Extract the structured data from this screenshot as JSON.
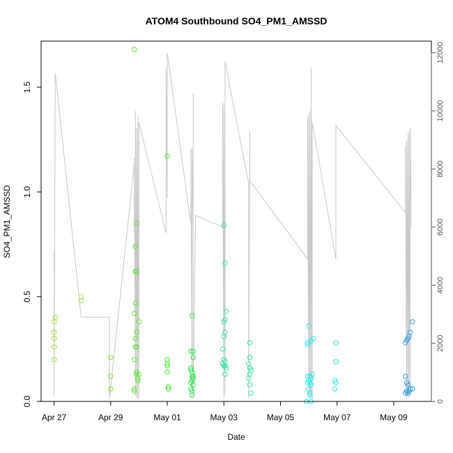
{
  "chart_data": {
    "type": "scatter",
    "title": "ATOM4 Southbound SO4_PM1_AMSSD",
    "xlabel": "Date",
    "ylabel": "SO4_PM1_AMSSD",
    "ylim": [
      0.0,
      1.72
    ],
    "y_ticks": [
      0.0,
      0.5,
      1.0,
      1.5
    ],
    "y_tick_labels": [
      "0.0",
      "0.5",
      "1.0",
      "1.5"
    ],
    "xlim": [
      "2018-04-26 13:00",
      "2018-05-10 08:00"
    ],
    "x_ticks": [
      "2018-04-27",
      "2018-04-29",
      "2018-05-01",
      "2018-05-03",
      "2018-05-05",
      "2018-05-07",
      "2018-05-09"
    ],
    "x_tick_labels": [
      "Apr 27",
      "Apr 29",
      "May 01",
      "May 03",
      "May 05",
      "May 07",
      "May 09"
    ],
    "y2lim": [
      0,
      12400
    ],
    "y2_ticks": [
      0,
      2000,
      4000,
      6000,
      8000,
      10000,
      12000
    ],
    "y2_tick_labels": [
      "0",
      "2000",
      "4000",
      "6000",
      "8000",
      "10000",
      "12000"
    ],
    "grid": false,
    "series": [
      {
        "marker": "open-circle",
        "points": [
          {
            "x": "2018-04-27 00:00",
            "y": 0.2,
            "color": "#9be62e"
          },
          {
            "x": "2018-04-27 00:00",
            "y": 0.26,
            "color": "#9be62e"
          },
          {
            "x": "2018-04-27 00:00",
            "y": 0.3,
            "color": "#9be62e"
          },
          {
            "x": "2018-04-27 00:00",
            "y": 0.33,
            "color": "#9be62e"
          },
          {
            "x": "2018-04-27 00:00",
            "y": 0.38,
            "color": "#9be62e"
          },
          {
            "x": "2018-04-27 01:00",
            "y": 0.4,
            "color": "#9be62e"
          },
          {
            "x": "2018-04-27 23:00",
            "y": 0.48,
            "color": "#a8e63a"
          },
          {
            "x": "2018-04-27 23:00",
            "y": 0.5,
            "color": "#a8e63a"
          },
          {
            "x": "2018-04-29 00:00",
            "y": 0.06,
            "color": "#7fe62e"
          },
          {
            "x": "2018-04-29 00:00",
            "y": 0.12,
            "color": "#7fe62e"
          },
          {
            "x": "2018-04-29 00:00",
            "y": 0.21,
            "color": "#7fe62e"
          },
          {
            "x": "2018-04-29 20:00",
            "y": 0.06,
            "color": "#5ee62e"
          },
          {
            "x": "2018-04-29 20:00",
            "y": 0.05,
            "color": "#5ee62e"
          },
          {
            "x": "2018-04-29 20:00",
            "y": 0.2,
            "color": "#5ee62e"
          },
          {
            "x": "2018-04-29 20:00",
            "y": 0.42,
            "color": "#5ee62e"
          },
          {
            "x": "2018-04-29 21:00",
            "y": 0.74,
            "color": "#5ee62e"
          },
          {
            "x": "2018-04-29 21:00",
            "y": 0.3,
            "color": "#5ee62e"
          },
          {
            "x": "2018-04-29 21:00",
            "y": 0.47,
            "color": "#5ee62e"
          },
          {
            "x": "2018-04-29 21:00",
            "y": 0.62,
            "color": "#5ee62e"
          },
          {
            "x": "2018-04-29 22:00",
            "y": 0.85,
            "color": "#5ee62e"
          },
          {
            "x": "2018-04-29 22:00",
            "y": 0.62,
            "color": "#5ee62e"
          },
          {
            "x": "2018-04-29 22:00",
            "y": 0.33,
            "color": "#5ee62e"
          },
          {
            "x": "2018-04-29 21:00",
            "y": 0.26,
            "color": "#5ee62e"
          },
          {
            "x": "2018-04-29 22:00",
            "y": 0.26,
            "color": "#5ee62e"
          },
          {
            "x": "2018-04-29 22:00",
            "y": 0.14,
            "color": "#5ee62e"
          },
          {
            "x": "2018-04-29 22:00",
            "y": 0.13,
            "color": "#5ee62e"
          },
          {
            "x": "2018-04-29 23:00",
            "y": 0.11,
            "color": "#5ee62e"
          },
          {
            "x": "2018-04-29 23:00",
            "y": 0.1,
            "color": "#5ee62e"
          },
          {
            "x": "2018-04-30 00:00",
            "y": 0.13,
            "color": "#5ee62e"
          },
          {
            "x": "2018-04-30 00:00",
            "y": 0.38,
            "color": "#5ee62e"
          },
          {
            "x": "2018-04-29 20:00",
            "y": 1.68,
            "color": "#5ee62e"
          },
          {
            "x": "2018-05-01 00:00",
            "y": 1.17,
            "color": "#48e62e"
          },
          {
            "x": "2018-05-01 00:00",
            "y": 0.2,
            "color": "#48e62e"
          },
          {
            "x": "2018-05-01 00:00",
            "y": 0.18,
            "color": "#48e62e"
          },
          {
            "x": "2018-05-01 00:00",
            "y": 0.17,
            "color": "#48e62e"
          },
          {
            "x": "2018-05-01 00:00",
            "y": 0.14,
            "color": "#48e62e"
          },
          {
            "x": "2018-05-01 01:00",
            "y": 0.07,
            "color": "#48e62e"
          },
          {
            "x": "2018-05-01 01:00",
            "y": 0.06,
            "color": "#48e62e"
          },
          {
            "x": "2018-05-01 21:00",
            "y": 0.41,
            "color": "#2ee64a"
          },
          {
            "x": "2018-05-01 20:00",
            "y": 0.24,
            "color": "#2ee64a"
          },
          {
            "x": "2018-05-01 22:00",
            "y": 0.24,
            "color": "#2ee64a"
          },
          {
            "x": "2018-05-01 22:00",
            "y": 0.21,
            "color": "#2ee64a"
          },
          {
            "x": "2018-05-01 20:00",
            "y": 0.16,
            "color": "#2ee64a"
          },
          {
            "x": "2018-05-01 20:00",
            "y": 0.15,
            "color": "#2ee64a"
          },
          {
            "x": "2018-05-01 21:00",
            "y": 0.14,
            "color": "#2ee64a"
          },
          {
            "x": "2018-05-01 21:00",
            "y": 0.12,
            "color": "#2ee64a"
          },
          {
            "x": "2018-05-01 22:00",
            "y": 0.12,
            "color": "#2ee64a"
          },
          {
            "x": "2018-05-01 22:00",
            "y": 0.11,
            "color": "#2ee64a"
          },
          {
            "x": "2018-05-01 21:00",
            "y": 0.1,
            "color": "#2ee64a"
          },
          {
            "x": "2018-05-01 20:00",
            "y": 0.09,
            "color": "#2ee64a"
          },
          {
            "x": "2018-05-01 22:00",
            "y": 0.08,
            "color": "#2ee64a"
          },
          {
            "x": "2018-05-01 20:00",
            "y": 0.06,
            "color": "#2ee64a"
          },
          {
            "x": "2018-05-01 21:00",
            "y": 0.05,
            "color": "#2ee64a"
          },
          {
            "x": "2018-05-01 21:00",
            "y": 0.03,
            "color": "#2ee64a"
          },
          {
            "x": "2018-05-03 00:00",
            "y": 0.84,
            "color": "#2ee6a4"
          },
          {
            "x": "2018-05-03 01:00",
            "y": 0.66,
            "color": "#2ee6a4"
          },
          {
            "x": "2018-05-03 02:00",
            "y": 0.43,
            "color": "#2ee6a4"
          },
          {
            "x": "2018-05-03 01:00",
            "y": 0.39,
            "color": "#2ee6a4"
          },
          {
            "x": "2018-05-03 00:00",
            "y": 0.38,
            "color": "#2ee6a4"
          },
          {
            "x": "2018-05-03 01:00",
            "y": 0.33,
            "color": "#2ee6a4"
          },
          {
            "x": "2018-05-03 00:00",
            "y": 0.31,
            "color": "#2ee6a4"
          },
          {
            "x": "2018-05-02 23:00",
            "y": 0.25,
            "color": "#2ee6a4"
          },
          {
            "x": "2018-05-03 00:00",
            "y": 0.2,
            "color": "#2ee6a4"
          },
          {
            "x": "2018-05-03 01:00",
            "y": 0.19,
            "color": "#2ee6a4"
          },
          {
            "x": "2018-05-02 23:00",
            "y": 0.18,
            "color": "#2ee6a4"
          },
          {
            "x": "2018-05-03 00:00",
            "y": 0.17,
            "color": "#2ee6a4"
          },
          {
            "x": "2018-05-03 01:00",
            "y": 0.17,
            "color": "#2ee6a4"
          },
          {
            "x": "2018-05-03 02:00",
            "y": 0.16,
            "color": "#2ee6a4"
          },
          {
            "x": "2018-05-03 01:00",
            "y": 0.13,
            "color": "#2ee6a4"
          },
          {
            "x": "2018-05-03 22:00",
            "y": 0.28,
            "color": "#2ee6a4"
          },
          {
            "x": "2018-05-03 22:00",
            "y": 0.21,
            "color": "#2ee6a4"
          },
          {
            "x": "2018-05-03 21:00",
            "y": 0.18,
            "color": "#2ee6a4"
          },
          {
            "x": "2018-05-03 22:00",
            "y": 0.16,
            "color": "#2ee6a4"
          },
          {
            "x": "2018-05-03 23:00",
            "y": 0.15,
            "color": "#2ee6a4"
          },
          {
            "x": "2018-05-03 22:00",
            "y": 0.13,
            "color": "#2ee6a4"
          },
          {
            "x": "2018-05-03 21:00",
            "y": 0.11,
            "color": "#2ee6a4"
          },
          {
            "x": "2018-05-03 22:00",
            "y": 0.08,
            "color": "#2ee6a4"
          },
          {
            "x": "2018-05-03 23:00",
            "y": 0.04,
            "color": "#2ee6a4"
          },
          {
            "x": "2018-05-06 00:00",
            "y": 0.36,
            "color": "#2ee6e6"
          },
          {
            "x": "2018-05-06 04:00",
            "y": 0.3,
            "color": "#2ee6e6"
          },
          {
            "x": "2018-05-06 02:00",
            "y": 0.29,
            "color": "#2ee6e6"
          },
          {
            "x": "2018-05-05 23:00",
            "y": 0.28,
            "color": "#2ee6e6"
          },
          {
            "x": "2018-05-05 23:00",
            "y": 0.27,
            "color": "#2ee6e6"
          },
          {
            "x": "2018-05-06 03:00",
            "y": 0.13,
            "color": "#2ee6e6"
          },
          {
            "x": "2018-05-05 23:00",
            "y": 0.12,
            "color": "#2ee6e6"
          },
          {
            "x": "2018-05-06 01:00",
            "y": 0.12,
            "color": "#2ee6e6"
          },
          {
            "x": "2018-05-06 02:00",
            "y": 0.11,
            "color": "#2ee6e6"
          },
          {
            "x": "2018-05-06 00:00",
            "y": 0.1,
            "color": "#2ee6e6"
          },
          {
            "x": "2018-05-06 01:00",
            "y": 0.09,
            "color": "#2ee6e6"
          },
          {
            "x": "2018-05-05 23:00",
            "y": 0.09,
            "color": "#2ee6e6"
          },
          {
            "x": "2018-05-06 02:00",
            "y": 0.08,
            "color": "#2ee6e6"
          },
          {
            "x": "2018-05-06 00:00",
            "y": 0.06,
            "color": "#2ee6e6"
          },
          {
            "x": "2018-05-06 01:00",
            "y": 0.04,
            "color": "#2ee6e6"
          },
          {
            "x": "2018-05-06 01:00",
            "y": 0.03,
            "color": "#2ee6e6"
          },
          {
            "x": "2018-05-06 02:00",
            "y": 0.0,
            "color": "#2ee6e6"
          },
          {
            "x": "2018-05-05 22:00",
            "y": 0.0,
            "color": "#2ee6e6"
          },
          {
            "x": "2018-05-06 23:00",
            "y": 0.28,
            "color": "#2ee6e0"
          },
          {
            "x": "2018-05-06 23:00",
            "y": 0.19,
            "color": "#2ee6e0"
          },
          {
            "x": "2018-05-06 22:00",
            "y": 0.1,
            "color": "#2ee6e0"
          },
          {
            "x": "2018-05-06 23:00",
            "y": 0.09,
            "color": "#2ee6e0"
          },
          {
            "x": "2018-05-06 22:00",
            "y": 0.06,
            "color": "#2ee6e0"
          },
          {
            "x": "2018-05-09 16:00",
            "y": 0.38,
            "color": "#2e9ee6"
          },
          {
            "x": "2018-05-09 14:00",
            "y": 0.33,
            "color": "#2e9ee6"
          },
          {
            "x": "2018-05-09 13:00",
            "y": 0.31,
            "color": "#2e9ee6"
          },
          {
            "x": "2018-05-09 12:00",
            "y": 0.3,
            "color": "#2e9ee6"
          },
          {
            "x": "2018-05-09 11:00",
            "y": 0.29,
            "color": "#2e9ee6"
          },
          {
            "x": "2018-05-09 10:00",
            "y": 0.28,
            "color": "#2e9ee6"
          },
          {
            "x": "2018-05-09 10:00",
            "y": 0.12,
            "color": "#2e9ee6"
          },
          {
            "x": "2018-05-09 11:00",
            "y": 0.09,
            "color": "#2e9ee6"
          },
          {
            "x": "2018-05-09 12:00",
            "y": 0.08,
            "color": "#2e9ee6"
          },
          {
            "x": "2018-05-09 14:00",
            "y": 0.06,
            "color": "#2e9ee6"
          },
          {
            "x": "2018-05-09 16:00",
            "y": 0.06,
            "color": "#2e9ee6"
          },
          {
            "x": "2018-05-09 13:00",
            "y": 0.05,
            "color": "#2e9ee6"
          },
          {
            "x": "2018-05-09 11:00",
            "y": 0.05,
            "color": "#2e9ee6"
          },
          {
            "x": "2018-05-09 12:00",
            "y": 0.04,
            "color": "#2e9ee6"
          },
          {
            "x": "2018-05-09 10:00",
            "y": 0.04,
            "color": "#2e9ee6"
          }
        ]
      },
      {
        "axis": "right",
        "line_color": "#c8c8c8",
        "x": [
          "2018-04-27 00:00",
          "2018-04-27 00:00",
          "2018-04-27 00:00",
          "2018-04-27 01:00",
          "2018-04-27 23:00",
          "2018-04-27 23:00",
          "2018-04-28 23:00",
          "2018-04-28 23:00",
          "2018-04-28 23:00",
          "2018-04-29 20:00",
          "2018-04-29 20:00",
          "2018-04-29 20:00",
          "2018-04-29 21:00",
          "2018-04-29 21:00",
          "2018-04-29 22:00",
          "2018-04-29 22:00",
          "2018-04-29 23:00",
          "2018-04-29 23:00",
          "2018-04-30 00:00",
          "2018-04-30 00:00",
          "2018-04-30 23:00",
          "2018-04-30 23:00",
          "2018-05-01 00:00",
          "2018-05-01 00:00",
          "2018-05-01 20:00",
          "2018-05-01 20:00",
          "2018-05-01 21:00",
          "2018-05-01 21:00",
          "2018-05-01 22:00",
          "2018-05-01 22:00",
          "2018-05-01 22:00",
          "2018-05-02 00:00",
          "2018-05-02 23:00",
          "2018-05-02 23:00",
          "2018-05-03 00:00",
          "2018-05-03 00:00",
          "2018-05-03 01:00",
          "2018-05-03 01:00",
          "2018-05-03 21:00",
          "2018-05-03 21:00",
          "2018-05-03 22:00",
          "2018-05-03 22:00",
          "2018-05-05 23:00",
          "2018-05-05 23:00",
          "2018-05-06 00:00",
          "2018-05-06 00:00",
          "2018-05-06 01:00",
          "2018-05-06 01:00",
          "2018-05-06 02:00",
          "2018-05-06 02:00",
          "2018-05-06 03:00",
          "2018-05-06 03:00",
          "2018-05-06 23:00",
          "2018-05-06 23:00",
          "2018-05-09 10:00",
          "2018-05-09 10:00",
          "2018-05-09 11:00",
          "2018-05-09 11:00",
          "2018-05-09 12:00",
          "2018-05-09 12:00",
          "2018-05-09 13:00",
          "2018-05-09 13:00",
          "2018-05-09 14:00",
          "2018-05-09 14:00",
          "2018-05-09 15:00"
        ],
        "values": [
          200,
          5200,
          300,
          11300,
          2900,
          2900,
          2900,
          100,
          100,
          8200,
          5800,
          8400,
          200,
          10000,
          100,
          9400,
          100,
          9800,
          100,
          9600,
          5800,
          11500,
          7000,
          12000,
          6100,
          8700,
          100,
          8700,
          5900,
          10600,
          200,
          6400,
          6000,
          10300,
          100,
          10200,
          200,
          11700,
          7500,
          100,
          9300,
          7600,
          4900,
          9800,
          200,
          9900,
          100,
          10000,
          200,
          11500,
          100,
          9600,
          4900,
          9500,
          6500,
          8800,
          100,
          9000,
          200,
          9200,
          100,
          9300,
          200,
          9400,
          6000
        ]
      }
    ]
  }
}
